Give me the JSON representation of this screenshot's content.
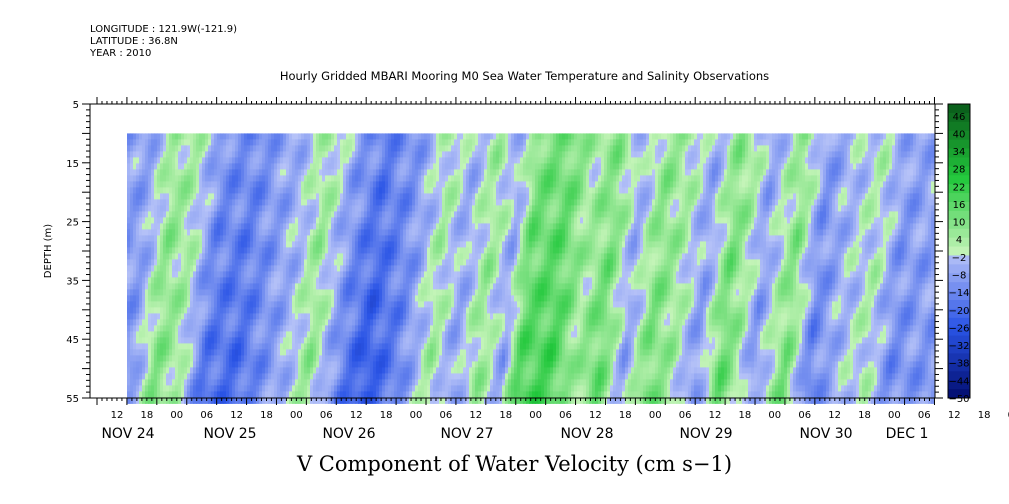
{
  "header": {
    "longitude": "LONGITUDE : 121.9W(-121.9)",
    "latitude": "LATITUDE : 36.8N",
    "year": "YEAR : 2010"
  },
  "title": "Hourly Gridded MBARI Mooring M0 Sea Water Temperature and Salinity Observations",
  "bottom_title": "V Component of Water Velocity (cm s−1)",
  "chart_data": {
    "type": "heatmap",
    "title": "Hourly Gridded MBARI Mooring M0 Sea Water Temperature and Salinity Observations",
    "variable": "V Component of Water Velocity (cm s−1)",
    "ylabel": "DEPTH (m)",
    "ylim": [
      5,
      55
    ],
    "y_inverted": true,
    "y_ticks": [
      5,
      15,
      25,
      35,
      45,
      55
    ],
    "data_depth_range": [
      10,
      55
    ],
    "x_hour_ticks": [
      "12",
      "18",
      "00",
      "06",
      "12",
      "18",
      "00",
      "06",
      "12",
      "18",
      "00",
      "06",
      "12",
      "18",
      "00",
      "06",
      "12",
      "18",
      "00",
      "06",
      "12",
      "18",
      "00",
      "06",
      "12",
      "18",
      "00",
      "06",
      "12",
      "18",
      "00",
      "06"
    ],
    "x_date_labels": [
      "NOV 24",
      "NOV 25",
      "NOV 26",
      "NOV 27",
      "NOV 28",
      "NOV 29",
      "NOV 30",
      "DEC  1"
    ],
    "colorbar": {
      "labels": [
        "46",
        "40",
        "34",
        "28",
        "22",
        "16",
        "10",
        "4",
        "−2",
        "−8",
        "−14",
        "−20",
        "−26",
        "−32",
        "−38",
        "−44",
        "−50"
      ],
      "min": -50,
      "max": 50,
      "step": 3,
      "colors": {
        "neg_dark": "#000a6a",
        "neg_mid": "#2a54e6",
        "neg_light": "#b8c4f8",
        "pos_light": "#c4f4b8",
        "pos_mid": "#22c83c",
        "pos_dark": "#0a5a1a"
      }
    },
    "time_profile": [
      {
        "t": 0.0,
        "v": -10
      },
      {
        "t": 0.03,
        "v": -8
      },
      {
        "t": 0.06,
        "v": 8
      },
      {
        "t": 0.09,
        "v": 3
      },
      {
        "t": 0.12,
        "v": -14
      },
      {
        "t": 0.16,
        "v": -16
      },
      {
        "t": 0.19,
        "v": -10
      },
      {
        "t": 0.22,
        "v": -4
      },
      {
        "t": 0.25,
        "v": 6
      },
      {
        "t": 0.29,
        "v": -12
      },
      {
        "t": 0.32,
        "v": -20
      },
      {
        "t": 0.36,
        "v": -12
      },
      {
        "t": 0.4,
        "v": 4
      },
      {
        "t": 0.43,
        "v": -6
      },
      {
        "t": 0.46,
        "v": 6
      },
      {
        "t": 0.49,
        "v": -6
      },
      {
        "t": 0.51,
        "v": 14
      },
      {
        "t": 0.55,
        "v": 16
      },
      {
        "t": 0.58,
        "v": 4
      },
      {
        "t": 0.61,
        "v": 12
      },
      {
        "t": 0.64,
        "v": -6
      },
      {
        "t": 0.67,
        "v": 10
      },
      {
        "t": 0.7,
        "v": 4
      },
      {
        "t": 0.73,
        "v": -8
      },
      {
        "t": 0.76,
        "v": 12
      },
      {
        "t": 0.78,
        "v": 4
      },
      {
        "t": 0.8,
        "v": -8
      },
      {
        "t": 0.84,
        "v": 10
      },
      {
        "t": 0.87,
        "v": -12
      },
      {
        "t": 0.9,
        "v": -4
      },
      {
        "t": 0.94,
        "v": 2
      },
      {
        "t": 0.97,
        "v": -10
      },
      {
        "t": 1.0,
        "v": -8
      }
    ]
  }
}
